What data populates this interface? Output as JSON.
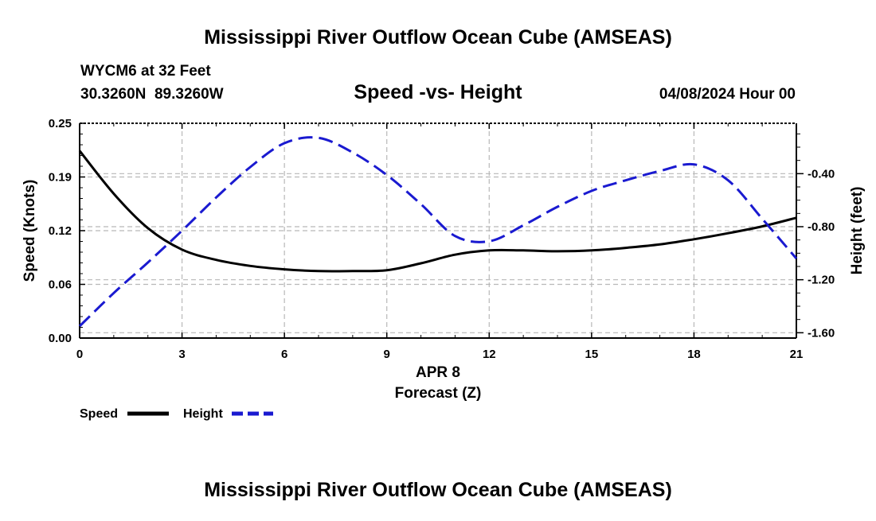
{
  "chart_data": {
    "type": "line",
    "title": "Mississippi River Outflow Ocean Cube (AMSEAS)",
    "footer_title": "Mississippi River Outflow Ocean Cube (AMSEAS)",
    "station": "WYCM6 at 32 Feet",
    "coordinates": "30.3260N  89.3260W",
    "subtitle": "Speed -vs- Height",
    "datetime": "04/08/2024 Hour 00",
    "xlabel_top": "APR 8",
    "xlabel": "Forecast (Z)",
    "ylabel_left": "Speed (Knots)",
    "ylabel_right": "Height (feet)",
    "xlim": [
      0,
      21
    ],
    "ylim_left": [
      0,
      0.25
    ],
    "ylim_right": [
      -1.64,
      -0.02
    ],
    "x_ticks": [
      "0",
      "3",
      "6",
      "9",
      "12",
      "15",
      "18",
      "21"
    ],
    "y_left_ticks": [
      "0.00",
      "0.06",
      "0.12",
      "0.19",
      "0.25"
    ],
    "y_right_ticks": [
      "-0.40",
      "-0.80",
      "-1.20",
      "-1.60"
    ],
    "grid": true,
    "series": [
      {
        "name": "Speed",
        "axis": "left",
        "color": "#000000",
        "style": "solid",
        "x": [
          0,
          1,
          2,
          3,
          4,
          5,
          6,
          7,
          8,
          9,
          10,
          11,
          12,
          13,
          14,
          15,
          16,
          17,
          18,
          19,
          20,
          21
        ],
        "values": [
          0.218,
          0.168,
          0.128,
          0.103,
          0.091,
          0.084,
          0.08,
          0.078,
          0.078,
          0.079,
          0.087,
          0.097,
          0.102,
          0.102,
          0.101,
          0.102,
          0.105,
          0.109,
          0.115,
          0.122,
          0.13,
          0.14
        ]
      },
      {
        "name": "Height",
        "axis": "right",
        "color": "#1a1ad0",
        "style": "dashed",
        "x": [
          0,
          1,
          2,
          3,
          4,
          5,
          6,
          7,
          8,
          9,
          10,
          11,
          12,
          13,
          14,
          15,
          16,
          17,
          18,
          19,
          20,
          21
        ],
        "values": [
          -1.55,
          -1.3,
          -1.07,
          -0.83,
          -0.58,
          -0.35,
          -0.17,
          -0.13,
          -0.24,
          -0.41,
          -0.63,
          -0.87,
          -0.91,
          -0.79,
          -0.65,
          -0.53,
          -0.45,
          -0.38,
          -0.33,
          -0.45,
          -0.74,
          -1.04
        ]
      }
    ]
  },
  "legend": {
    "speed_label": "Speed",
    "height_label": "Height"
  }
}
